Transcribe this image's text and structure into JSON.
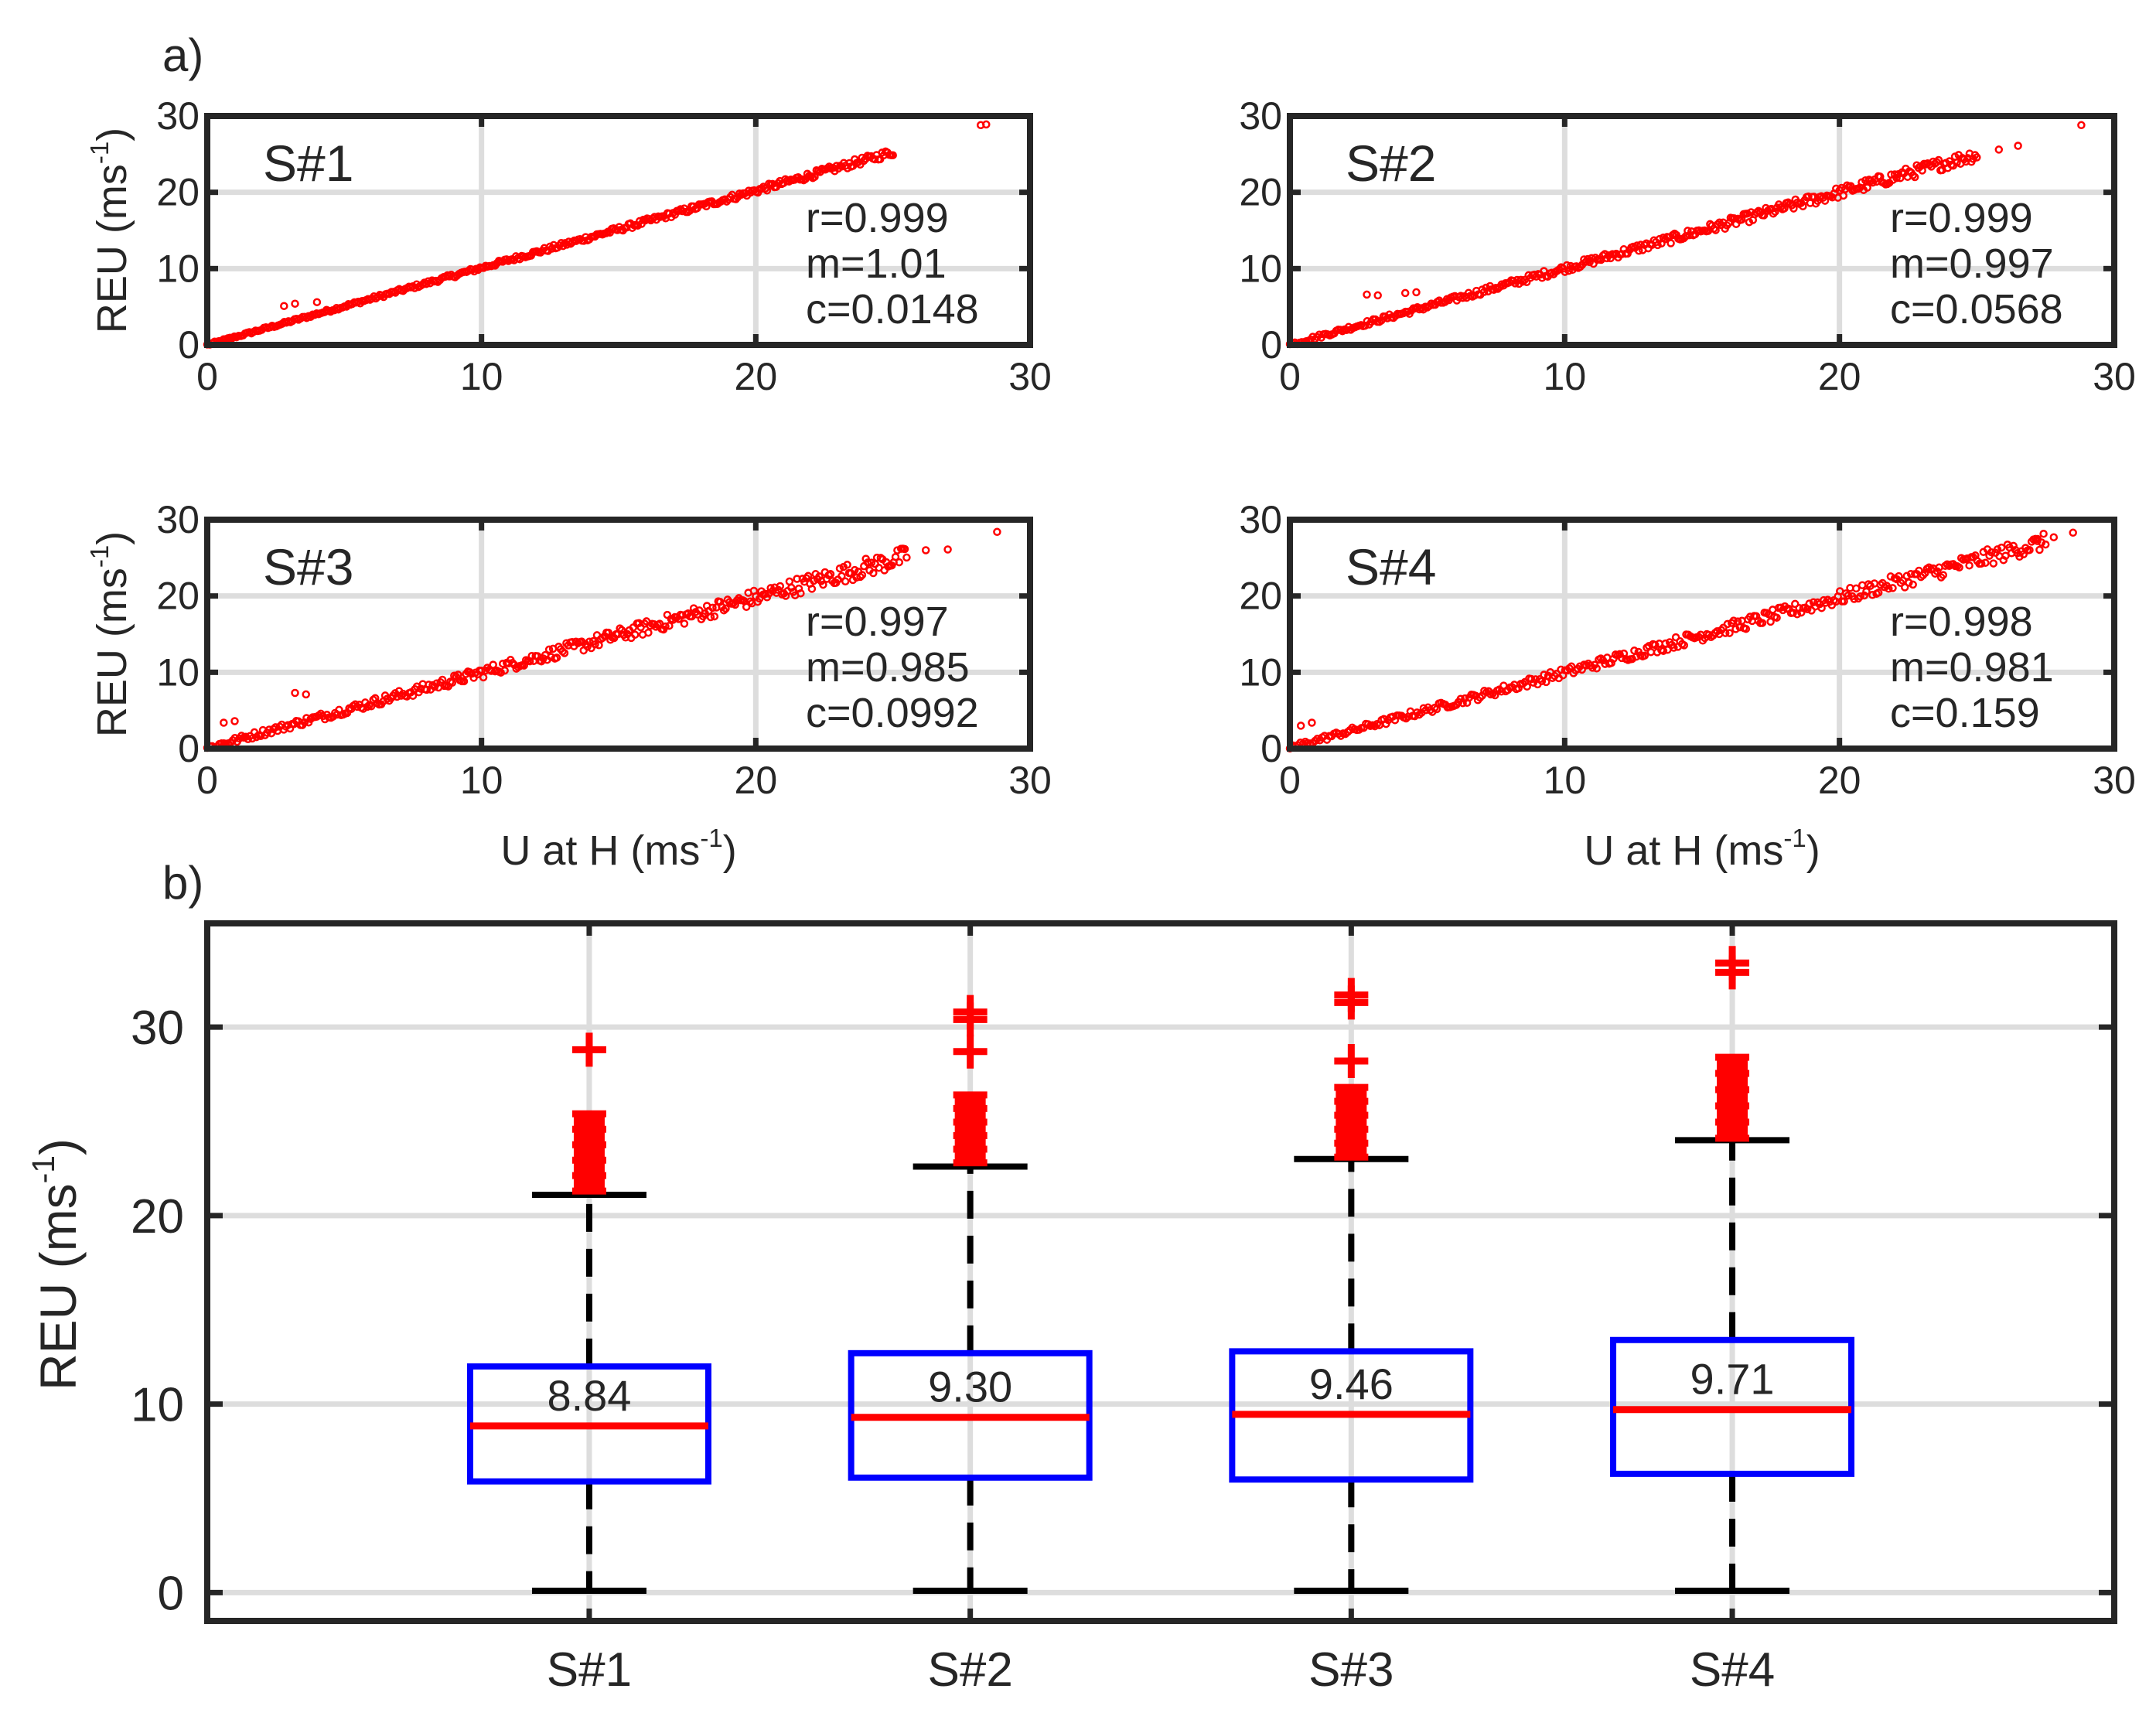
{
  "panel_labels": {
    "a": "a)",
    "b": "b)"
  },
  "colors": {
    "points": "#ff0000",
    "box": "#0000ff",
    "median": "#ff0000",
    "outlier": "#ff0000",
    "whisker": "#000000",
    "grid": "#dddddd",
    "frame": "#262626"
  },
  "chart_data": [
    {
      "id": "s1",
      "type": "scatter",
      "title": "S#1",
      "xlabel": "",
      "ylabel": "REU (ms-1)",
      "ylabel_parts": {
        "base": "REU (ms",
        "sup": "-1",
        "close": ")"
      },
      "xlim": [
        0,
        30
      ],
      "ylim": [
        0,
        30
      ],
      "xticks": [
        "0",
        "10",
        "20",
        "30"
      ],
      "yticks": [
        "0",
        "10",
        "20",
        "30"
      ],
      "grid": true,
      "stats": [
        "r=0.999",
        "m=1.01",
        "c=0.0148"
      ],
      "fit": {
        "m": 1.01,
        "c": 0.0148
      },
      "xmax": 25,
      "spread": 0.35,
      "outliers": [
        [
          28.2,
          28.8
        ],
        [
          28.4,
          28.9
        ],
        [
          2.8,
          5.1
        ],
        [
          3.2,
          5.4
        ],
        [
          4.0,
          5.6
        ]
      ]
    },
    {
      "id": "s2",
      "type": "scatter",
      "title": "S#2",
      "xlabel": "",
      "ylabel": "",
      "xlim": [
        0,
        30
      ],
      "ylim": [
        0,
        30
      ],
      "xticks": [
        "0",
        "10",
        "20",
        "30"
      ],
      "yticks": [
        "0",
        "10",
        "20",
        "30"
      ],
      "grid": true,
      "stats": [
        "r=0.999",
        "m=0.997",
        "c=0.0568"
      ],
      "fit": {
        "m": 0.997,
        "c": 0.0568
      },
      "xmax": 25,
      "spread": 0.6,
      "outliers": [
        [
          26.5,
          26.1
        ],
        [
          25.8,
          25.6
        ],
        [
          28.8,
          28.8
        ],
        [
          2.8,
          6.6
        ],
        [
          3.2,
          6.5
        ],
        [
          4.2,
          6.8
        ],
        [
          4.6,
          6.9
        ]
      ]
    },
    {
      "id": "s3",
      "type": "scatter",
      "title": "S#3",
      "xlabel": "U at H (ms-1)",
      "xlabel_parts": {
        "base": "U at H (ms",
        "sup": "-1",
        "close": ")"
      },
      "ylabel": "REU (ms-1)",
      "ylabel_parts": {
        "base": "REU (ms",
        "sup": "-1",
        "close": ")"
      },
      "xlim": [
        0,
        30
      ],
      "ylim": [
        0,
        30
      ],
      "xticks": [
        "0",
        "10",
        "20",
        "30"
      ],
      "yticks": [
        "0",
        "10",
        "20",
        "30"
      ],
      "grid": true,
      "stats": [
        "r=0.997",
        "m=0.985",
        "c=0.0992"
      ],
      "fit": {
        "m": 0.985,
        "c": 0.0992
      },
      "xmax": 25.5,
      "spread": 0.9,
      "outliers": [
        [
          26.2,
          26.0
        ],
        [
          27.0,
          26.1
        ],
        [
          28.8,
          28.4
        ],
        [
          3.2,
          7.3
        ],
        [
          3.6,
          7.1
        ],
        [
          0.6,
          3.4
        ],
        [
          1.0,
          3.6
        ]
      ]
    },
    {
      "id": "s4",
      "type": "scatter",
      "title": "S#4",
      "xlabel": "U at H (ms-1)",
      "xlabel_parts": {
        "base": "U at H (ms",
        "sup": "-1",
        "close": ")"
      },
      "ylabel": "",
      "xlim": [
        0,
        30
      ],
      "ylim": [
        0,
        30
      ],
      "xticks": [
        "0",
        "10",
        "20",
        "30"
      ],
      "yticks": [
        "0",
        "10",
        "20",
        "30"
      ],
      "grid": true,
      "stats": [
        "r=0.998",
        "m=0.981",
        "c=0.159"
      ],
      "fit": {
        "m": 0.981,
        "c": 0.159
      },
      "xmax": 27.5,
      "spread": 0.8,
      "outliers": [
        [
          28.5,
          28.3
        ],
        [
          27.8,
          27.7
        ],
        [
          27.2,
          27.2
        ],
        [
          0.4,
          3.0
        ],
        [
          0.8,
          3.4
        ]
      ]
    },
    {
      "id": "box",
      "type": "box",
      "xlabel": "",
      "ylabel": "REU (ms-1)",
      "ylabel_parts": {
        "base": "REU (ms",
        "sup": "-1",
        "close": ")"
      },
      "ylim": [
        -1.5,
        35.5
      ],
      "yticks": [
        0,
        10,
        20,
        30
      ],
      "ytick_labels": [
        "0",
        "10",
        "20",
        "30"
      ],
      "grid": true,
      "categories": [
        "S#1",
        "S#2",
        "S#3",
        "S#4"
      ],
      "boxes": [
        {
          "q1": 5.9,
          "median": 8.84,
          "q3": 12.0,
          "whisker_low": 0.1,
          "whisker_high": 21.1,
          "median_label": "8.84",
          "outliers_range": [
            21.3,
            25.4
          ],
          "outliers": [
            28.8
          ]
        },
        {
          "q1": 6.1,
          "median": 9.3,
          "q3": 12.7,
          "whisker_low": 0.1,
          "whisker_high": 22.6,
          "median_label": "9.30",
          "outliers_range": [
            22.8,
            26.4
          ],
          "outliers": [
            28.7,
            30.4,
            30.8
          ]
        },
        {
          "q1": 6.0,
          "median": 9.46,
          "q3": 12.8,
          "whisker_low": 0.1,
          "whisker_high": 23.0,
          "median_label": "9.46",
          "outliers_range": [
            23.1,
            26.8
          ],
          "outliers": [
            28.2,
            31.3,
            31.7
          ]
        },
        {
          "q1": 6.3,
          "median": 9.71,
          "q3": 13.4,
          "whisker_low": 0.1,
          "whisker_high": 24.0,
          "median_label": "9.71",
          "outliers_range": [
            24.1,
            28.4
          ],
          "outliers": [
            32.9,
            33.4
          ]
        }
      ]
    }
  ]
}
